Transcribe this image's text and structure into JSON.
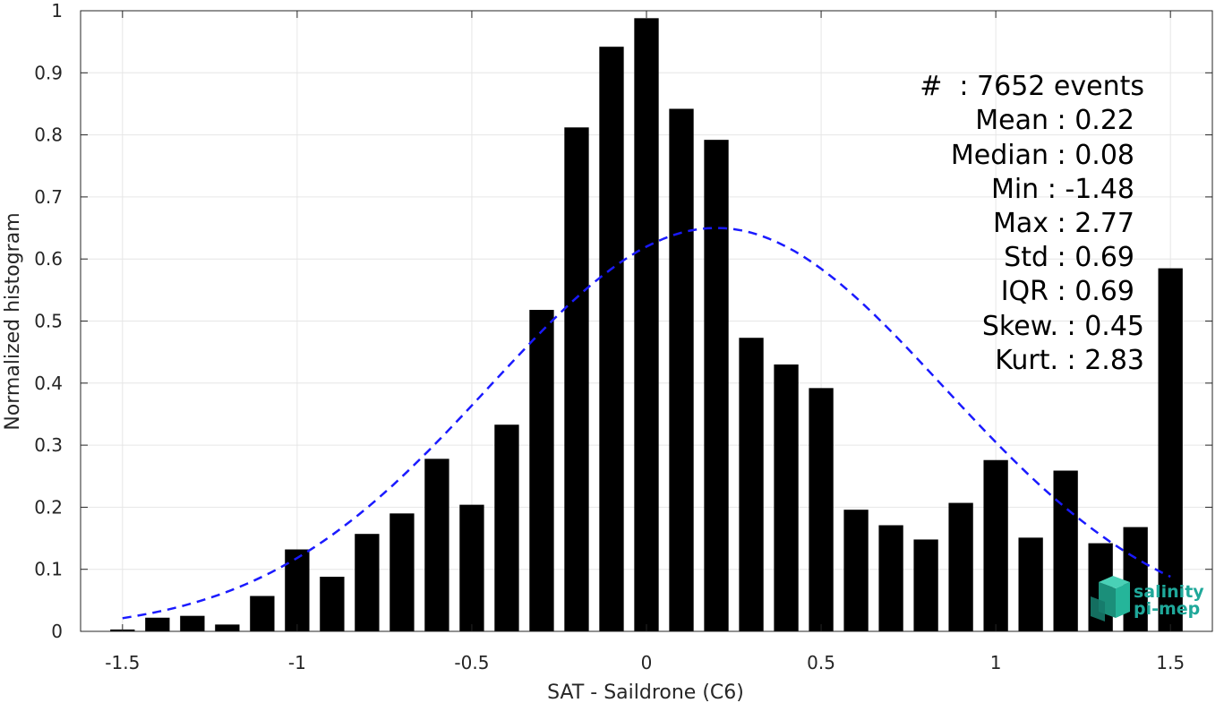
{
  "colors": {
    "bar": "#000000",
    "fit": "#1a1aff",
    "grid": "#e6e6e6",
    "axis": "#262626",
    "logo": "#1fa89a"
  },
  "stats": {
    "count": "#  : 7652 events",
    "mean": "Mean : 0.22",
    "median": "Median : 0.08",
    "min": "Min : -1.48",
    "max": "Max : 2.77",
    "std": "Std : 0.69",
    "iqr": "IQR : 0.69",
    "skew": "Skew. : 0.45",
    "kurt": "Kurt. : 2.83"
  },
  "logo": {
    "line1": "salinity",
    "line2": "pi-mep",
    "icon": "salinity-cube-icon"
  },
  "chart_data": {
    "type": "bar",
    "xlabel": "SAT - Saildrone (C6)",
    "ylabel": "Normalized histogram",
    "xlim": [
      -1.62,
      1.62
    ],
    "ylim": [
      0,
      1
    ],
    "grid": true,
    "x_ticks": [
      -1.5,
      -1,
      -0.5,
      0,
      0.5,
      1,
      1.5
    ],
    "x_tick_labels": [
      "-1.5",
      "-1",
      "-0.5",
      "0",
      "0.5",
      "1",
      "1.5"
    ],
    "y_ticks": [
      0,
      0.1,
      0.2,
      0.3,
      0.4,
      0.5,
      0.6,
      0.7,
      0.8,
      0.9,
      1
    ],
    "y_tick_labels": [
      "0",
      "0.1",
      "0.2",
      "0.3",
      "0.4",
      "0.5",
      "0.6",
      "0.7",
      "0.8",
      "0.9",
      "1"
    ],
    "bar_width": 0.07,
    "x": [
      -1.5,
      -1.4,
      -1.3,
      -1.2,
      -1.1,
      -1.0,
      -0.9,
      -0.8,
      -0.7,
      -0.6,
      -0.5,
      -0.4,
      -0.3,
      -0.2,
      -0.1,
      0.0,
      0.1,
      0.2,
      0.3,
      0.4,
      0.5,
      0.6,
      0.7,
      0.8,
      0.9,
      1.0,
      1.1,
      1.2,
      1.3,
      1.4,
      1.5
    ],
    "values": [
      0.003,
      0.022,
      0.025,
      0.011,
      0.057,
      0.132,
      0.088,
      0.157,
      0.19,
      0.278,
      0.204,
      0.333,
      0.518,
      0.812,
      0.942,
      0.988,
      0.842,
      0.792,
      0.473,
      0.43,
      0.392,
      0.196,
      0.171,
      0.148,
      0.207,
      0.276,
      0.151,
      0.259,
      0.142,
      0.168,
      0.585
    ],
    "fit": {
      "style": "dashed",
      "mean": 0.2,
      "std": 0.65,
      "peak": 0.65,
      "x_range": [
        -1.5,
        1.5
      ]
    }
  }
}
